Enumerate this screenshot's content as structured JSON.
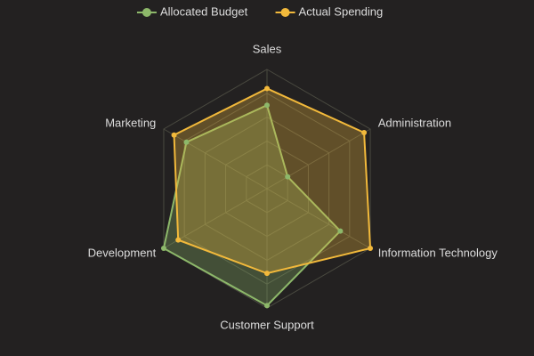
{
  "chart_data": {
    "type": "radar",
    "categories": [
      "Sales",
      "Administration",
      "Information Technology",
      "Customer Support",
      "Development",
      "Marketing"
    ],
    "series": [
      {
        "name": "Allocated Budget",
        "color": "#8db86a",
        "values": [
          70,
          20,
          71,
          98,
          100,
          78
        ]
      },
      {
        "name": "Actual Spending",
        "color": "#f2b93b",
        "values": [
          84,
          94,
          100,
          71,
          86,
          90
        ]
      }
    ],
    "ylim": [
      0,
      100
    ],
    "yticks": [
      20,
      40,
      60,
      80,
      100
    ],
    "grid": true,
    "legend": "top"
  }
}
